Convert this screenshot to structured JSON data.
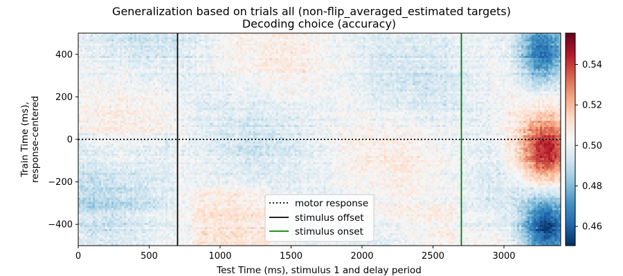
{
  "chart_data": {
    "type": "heatmap",
    "title": "Generalization based on trials all (non-flip_averaged_estimated targets)",
    "subtitle": "Decoding choice (accuracy)",
    "xlabel": "Test Time (ms), stimulus 1 and delay period",
    "ylabel_line1": "Train Time (ms),",
    "ylabel_line2": "response-centered",
    "xlim": [
      0,
      3400
    ],
    "ylim": [
      -500,
      500
    ],
    "x_ticks": [
      {
        "value": 0,
        "label": "0"
      },
      {
        "value": 500,
        "label": "500"
      },
      {
        "value": 1000,
        "label": "1000"
      },
      {
        "value": 1500,
        "label": "1500"
      },
      {
        "value": 2000,
        "label": "2000"
      },
      {
        "value": 2500,
        "label": "2500"
      },
      {
        "value": 3000,
        "label": "3000"
      }
    ],
    "y_ticks": [
      {
        "value": 400,
        "label": "400"
      },
      {
        "value": 200,
        "label": "200"
      },
      {
        "value": 0,
        "label": "0"
      },
      {
        "value": -200,
        "label": "−200"
      },
      {
        "value": -400,
        "label": "−400"
      }
    ],
    "colorbar": {
      "colormap": "RdBu_r",
      "range": [
        0.4505,
        0.5555
      ],
      "ticks": [
        {
          "value": 0.54,
          "label": "0.54"
        },
        {
          "value": 0.52,
          "label": "0.52"
        },
        {
          "value": 0.5,
          "label": "0.50"
        },
        {
          "value": 0.48,
          "label": "0.48"
        },
        {
          "value": 0.46,
          "label": "0.46"
        }
      ]
    },
    "reference_lines": [
      {
        "orientation": "horizontal",
        "value": 0,
        "style": "dotted",
        "color": "#000000",
        "name": "motor response"
      },
      {
        "orientation": "vertical",
        "value": 700,
        "style": "solid",
        "color": "#000000",
        "name": "stimulus offset"
      },
      {
        "orientation": "vertical",
        "value": 2700,
        "style": "solid",
        "color": "#008000",
        "name": "stimulus onset"
      }
    ],
    "legend": {
      "position": "lower-center",
      "entries": [
        {
          "label": "motor response",
          "style": "dotted",
          "color": "#000000"
        },
        {
          "label": "stimulus offset",
          "style": "solid",
          "color": "#000000"
        },
        {
          "label": "stimulus onset",
          "style": "solid",
          "color": "#008000"
        }
      ]
    },
    "regions": [
      {
        "region": "diagonal peak",
        "x_range": [
          3050,
          3400
        ],
        "y_range": [
          -250,
          100
        ],
        "peak_value": 0.553
      },
      {
        "region": "upper-right low",
        "x_range": [
          3000,
          3400
        ],
        "y_range": [
          250,
          500
        ],
        "min_value": 0.455
      },
      {
        "region": "lower-right low",
        "x_range": [
          3050,
          3400
        ],
        "y_range": [
          -500,
          -250
        ],
        "min_value": 0.452
      },
      {
        "region": "baseline",
        "x_range": [
          0,
          2800
        ],
        "y_range": [
          -500,
          500
        ],
        "mean_value": 0.5
      }
    ]
  }
}
